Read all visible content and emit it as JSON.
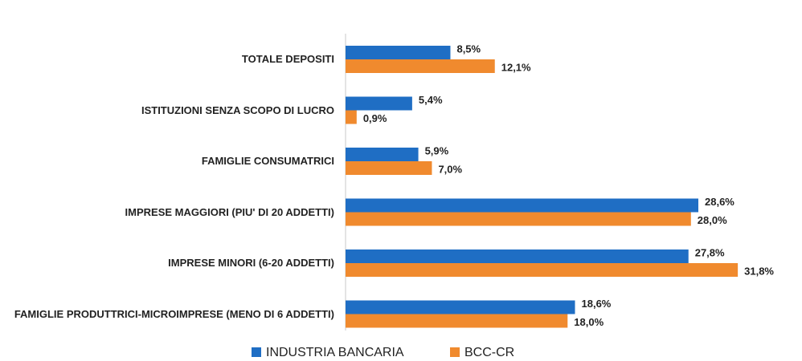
{
  "chart_data": {
    "type": "hbar",
    "categories": [
      "TOTALE DEPOSITI",
      "ISTITUZIONI SENZA SCOPO DI LUCRO",
      "FAMIGLIE CONSUMATRICI",
      "IMPRESE MAGGIORI (PIU' DI 20 ADDETTI)",
      "IMPRESE MINORI (6-20 ADDETTI)",
      "FAMIGLIE PRODUTTRICI-MICROIMPRESE (MENO DI 6 ADDETTI)"
    ],
    "series": [
      {
        "name": "INDUSTRIA BANCARIA",
        "color": "#1f6ec4",
        "values": [
          8.5,
          5.4,
          5.9,
          28.6,
          27.8,
          18.6
        ],
        "value_labels": [
          "8,5%",
          "5,4%",
          "5,9%",
          "28,6%",
          "27,8%",
          "18,6%"
        ]
      },
      {
        "name": "BCC-CR",
        "color": "#f08a2e",
        "values": [
          12.1,
          0.9,
          7.0,
          28.0,
          31.8,
          18.0
        ],
        "value_labels": [
          "12,1%",
          "0,9%",
          "7,0%",
          "28,0%",
          "31,8%",
          "18,0%"
        ]
      }
    ],
    "legend": "bottom"
  }
}
